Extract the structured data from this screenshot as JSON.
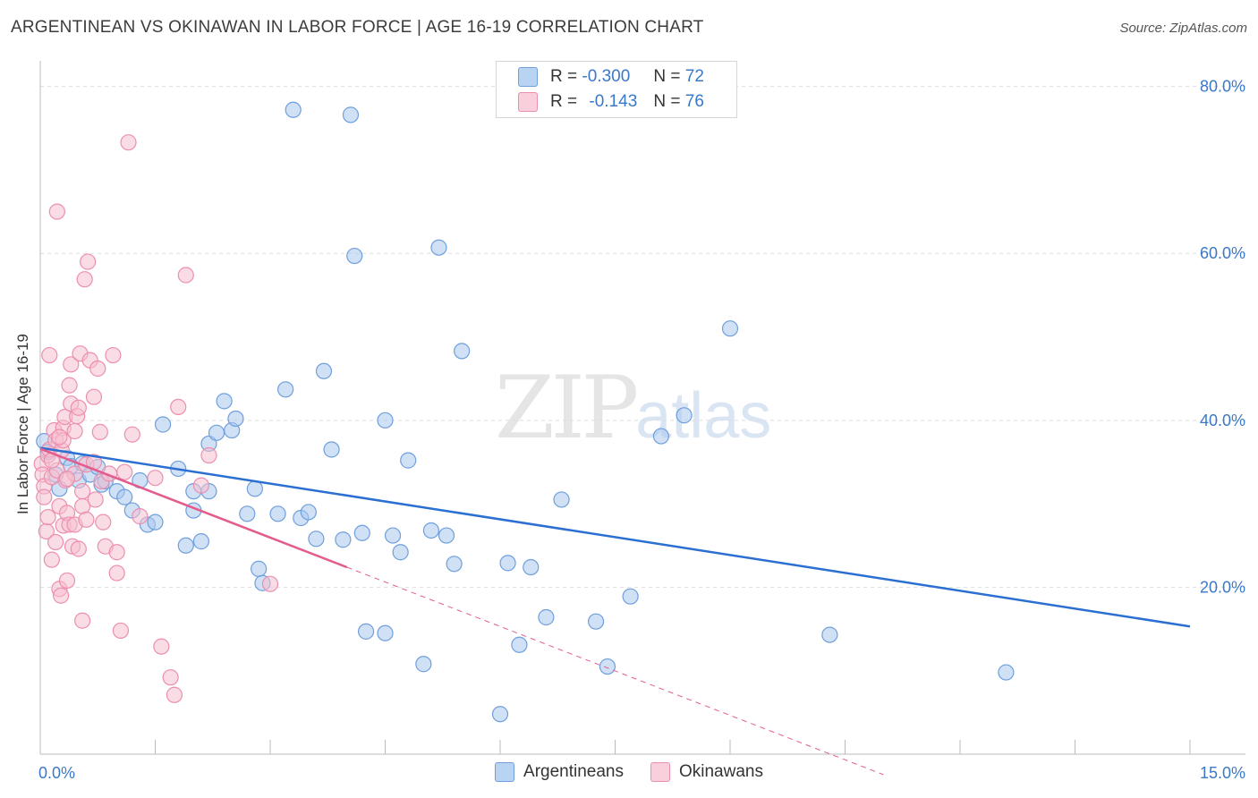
{
  "title": "ARGENTINEAN VS OKINAWAN IN LABOR FORCE | AGE 16-19 CORRELATION CHART",
  "source": "Source: ZipAtlas.com",
  "watermark": {
    "zip": "ZIP",
    "atlas": "atlas"
  },
  "legend_top": {
    "rows": [
      {
        "r_label": "R =",
        "r_value": "-0.300",
        "n_label": "N =",
        "n_value": "72"
      },
      {
        "r_label": "R =",
        "r_value": "-0.143",
        "n_label": "N =",
        "n_value": "76"
      }
    ]
  },
  "colors": {
    "blue_fill": "#a9c8ef",
    "blue_stroke": "#6f9fdc",
    "blue_line": "#2a6fd1",
    "pink_fill": "#f6bfd0",
    "pink_stroke": "#ec8fae",
    "pink_line": "#e45c8d",
    "grid": "#dddddd",
    "tick_label": "#3a78c9"
  },
  "chart_data": {
    "type": "scatter",
    "title": "ARGENTINEAN VS OKINAWAN IN LABOR FORCE | AGE 16-19 CORRELATION CHART",
    "xlabel": "",
    "ylabel": "In Labor Force | Age 16-19",
    "xlim": [
      0,
      15
    ],
    "ylim": [
      0,
      82
    ],
    "x_tick_labels": [
      {
        "value": 0,
        "label": "0.0%"
      },
      {
        "value": 15,
        "label": "15.0%"
      }
    ],
    "y_tick_labels": [
      {
        "value": 20,
        "label": "20.0%"
      },
      {
        "value": 40,
        "label": "40.0%"
      },
      {
        "value": 60,
        "label": "60.0%"
      },
      {
        "value": 80,
        "label": "80.0%"
      }
    ],
    "legend": [
      "Argentineans",
      "Okinawans"
    ],
    "series": [
      {
        "name": "Argentineans",
        "trend": {
          "x": [
            0,
            15
          ],
          "y": [
            36.7,
            15.3
          ],
          "dashed_to": 15
        },
        "points": [
          [
            0.05,
            37.5
          ],
          [
            0.1,
            36.2
          ],
          [
            0.2,
            33.5
          ],
          [
            0.25,
            31.8
          ],
          [
            0.35,
            35.5
          ],
          [
            0.4,
            34.5
          ],
          [
            0.5,
            32.8
          ],
          [
            0.55,
            34.8
          ],
          [
            0.65,
            33.5
          ],
          [
            0.75,
            34.4
          ],
          [
            0.8,
            32.3
          ],
          [
            0.85,
            32.7
          ],
          [
            1.0,
            31.5
          ],
          [
            1.1,
            30.8
          ],
          [
            1.2,
            29.2
          ],
          [
            1.3,
            32.8
          ],
          [
            1.4,
            27.5
          ],
          [
            1.5,
            27.8
          ],
          [
            1.6,
            39.5
          ],
          [
            1.8,
            34.2
          ],
          [
            1.9,
            25.0
          ],
          [
            2.0,
            29.2
          ],
          [
            2.0,
            31.5
          ],
          [
            2.1,
            25.5
          ],
          [
            2.2,
            31.5
          ],
          [
            2.2,
            37.2
          ],
          [
            2.3,
            38.5
          ],
          [
            2.4,
            42.3
          ],
          [
            2.5,
            38.8
          ],
          [
            2.55,
            40.2
          ],
          [
            2.7,
            28.8
          ],
          [
            2.8,
            31.8
          ],
          [
            2.85,
            22.2
          ],
          [
            2.9,
            20.5
          ],
          [
            3.1,
            28.8
          ],
          [
            3.2,
            43.7
          ],
          [
            3.3,
            77.2
          ],
          [
            3.4,
            28.3
          ],
          [
            3.5,
            29.0
          ],
          [
            3.6,
            25.8
          ],
          [
            3.7,
            45.9
          ],
          [
            3.8,
            36.5
          ],
          [
            3.95,
            25.7
          ],
          [
            4.05,
            76.6
          ],
          [
            4.1,
            59.7
          ],
          [
            4.2,
            26.5
          ],
          [
            4.25,
            14.7
          ],
          [
            4.5,
            14.5
          ],
          [
            4.5,
            40.0
          ],
          [
            4.6,
            26.2
          ],
          [
            4.7,
            24.2
          ],
          [
            4.8,
            35.2
          ],
          [
            5.0,
            10.8
          ],
          [
            5.1,
            26.8
          ],
          [
            5.2,
            60.7
          ],
          [
            5.3,
            26.2
          ],
          [
            5.4,
            22.8
          ],
          [
            5.5,
            48.3
          ],
          [
            6.0,
            4.8
          ],
          [
            6.1,
            22.9
          ],
          [
            6.25,
            13.1
          ],
          [
            6.4,
            22.4
          ],
          [
            6.6,
            16.4
          ],
          [
            6.8,
            30.5
          ],
          [
            7.25,
            15.9
          ],
          [
            7.4,
            10.5
          ],
          [
            7.7,
            18.9
          ],
          [
            8.1,
            38.1
          ],
          [
            8.4,
            40.6
          ],
          [
            9.0,
            51.0
          ],
          [
            10.3,
            14.3
          ],
          [
            12.6,
            9.8
          ]
        ]
      },
      {
        "name": "Okinawans",
        "trend": {
          "x": [
            0,
            4
          ],
          "y": [
            36.6,
            22.4
          ],
          "dashed_to": 11
        },
        "points": [
          [
            0.02,
            34.8
          ],
          [
            0.03,
            33.5
          ],
          [
            0.05,
            32.1
          ],
          [
            0.05,
            30.8
          ],
          [
            0.08,
            26.7
          ],
          [
            0.1,
            35.8
          ],
          [
            0.1,
            28.4
          ],
          [
            0.12,
            36.5
          ],
          [
            0.12,
            47.8
          ],
          [
            0.15,
            33.2
          ],
          [
            0.15,
            23.3
          ],
          [
            0.18,
            38.8
          ],
          [
            0.2,
            25.4
          ],
          [
            0.2,
            37.6
          ],
          [
            0.22,
            65.0
          ],
          [
            0.22,
            34.0
          ],
          [
            0.25,
            29.7
          ],
          [
            0.25,
            19.8
          ],
          [
            0.27,
            19.0
          ],
          [
            0.28,
            36.4
          ],
          [
            0.3,
            39.1
          ],
          [
            0.3,
            27.4
          ],
          [
            0.3,
            37.6
          ],
          [
            0.32,
            40.4
          ],
          [
            0.33,
            32.8
          ],
          [
            0.35,
            28.9
          ],
          [
            0.35,
            20.8
          ],
          [
            0.38,
            27.5
          ],
          [
            0.38,
            44.2
          ],
          [
            0.4,
            46.7
          ],
          [
            0.4,
            42.0
          ],
          [
            0.42,
            24.9
          ],
          [
            0.45,
            38.7
          ],
          [
            0.45,
            33.6
          ],
          [
            0.45,
            27.5
          ],
          [
            0.48,
            40.5
          ],
          [
            0.5,
            24.6
          ],
          [
            0.5,
            41.5
          ],
          [
            0.52,
            48.0
          ],
          [
            0.55,
            16.0
          ],
          [
            0.55,
            29.7
          ],
          [
            0.58,
            56.9
          ],
          [
            0.6,
            34.7
          ],
          [
            0.6,
            28.1
          ],
          [
            0.62,
            59.0
          ],
          [
            0.65,
            47.2
          ],
          [
            0.7,
            35.0
          ],
          [
            0.7,
            42.8
          ],
          [
            0.72,
            30.5
          ],
          [
            0.75,
            46.2
          ],
          [
            0.78,
            38.6
          ],
          [
            0.8,
            32.7
          ],
          [
            0.82,
            27.8
          ],
          [
            0.85,
            24.9
          ],
          [
            0.9,
            33.6
          ],
          [
            0.95,
            47.8
          ],
          [
            1.0,
            21.7
          ],
          [
            1.0,
            24.2
          ],
          [
            1.05,
            14.8
          ],
          [
            1.1,
            33.8
          ],
          [
            1.15,
            73.3
          ],
          [
            1.2,
            38.3
          ],
          [
            1.3,
            28.5
          ],
          [
            1.5,
            33.1
          ],
          [
            1.58,
            12.9
          ],
          [
            1.7,
            9.2
          ],
          [
            1.75,
            7.1
          ],
          [
            1.8,
            41.6
          ],
          [
            1.9,
            57.4
          ],
          [
            2.1,
            32.2
          ],
          [
            2.2,
            35.8
          ],
          [
            3.0,
            20.4
          ],
          [
            0.15,
            35.2
          ],
          [
            0.35,
            33.0
          ],
          [
            0.55,
            31.5
          ],
          [
            0.25,
            38.0
          ]
        ]
      }
    ]
  },
  "legend_bottom": {
    "items": [
      "Argentineans",
      "Okinawans"
    ]
  }
}
